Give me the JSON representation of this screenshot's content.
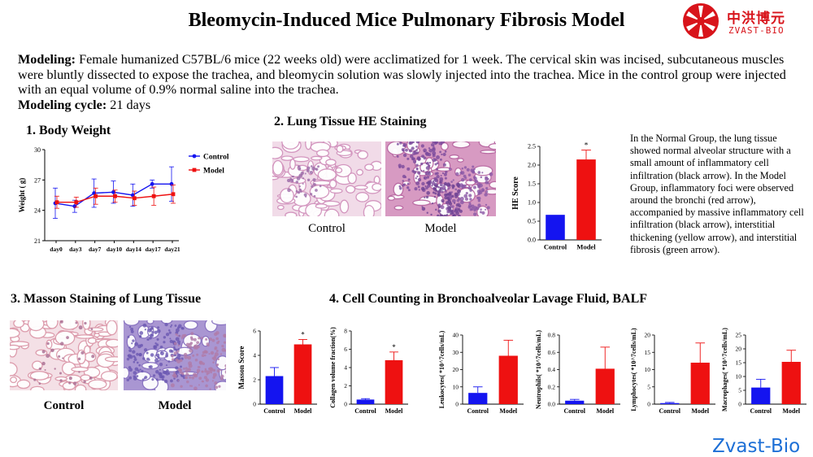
{
  "title": "Bleomycin-Induced Mice Pulmonary Fibrosis Model",
  "brand": {
    "cn": "中洪博元",
    "en": "ZVAST-BIO",
    "footer": "Zvast-Bio",
    "color": "#d8141b",
    "footer_color": "#1d6fd6"
  },
  "intro": {
    "modeling_label": "Modeling:",
    "modeling_text": "Female humanized C57BL/6 mice (22 weeks old) were acclimatized for 1 week. The cervical skin was incised, subcutaneous muscles were bluntly dissected to expose the trachea, and bleomycin solution was slowly injected into the trachea. Mice in the control group were injected with an equal volume of 0.9% normal saline into the trachea.",
    "cycle_label": "Modeling cycle:",
    "cycle_text": "21 days"
  },
  "sections": {
    "s1": "1. Body Weight",
    "s2": "2. Lung Tissue HE Staining",
    "s3": "3. Masson Staining of Lung Tissue",
    "s4": "4. Cell Counting in Bronchoalveolar Lavage Fluid, BALF"
  },
  "captions": {
    "he_control": "Control",
    "he_model": "Model",
    "masson_control": "Control",
    "masson_model": "Model"
  },
  "he_description": "In the Normal Group, the lung tissue showed normal alveolar structure with a small amount of inflammatory cell infiltration (black arrow). In the Model Group, inflammatory foci were observed around the bronchi (red arrow), accompanied by massive inflammatory cell infiltration (black arrow), interstitial thickening (yellow arrow), and interstitial fibrosis (green arrow).",
  "colors": {
    "control": "#1414f0",
    "model": "#ee1111",
    "tissue_light": "#f3dce8",
    "tissue_pink": "#d98db8",
    "tissue_purple": "#8a6cc0"
  },
  "chart_data": [
    {
      "id": "body-weight",
      "type": "line",
      "xlabel": "",
      "ylabel": "Weight ( g)",
      "categories": [
        "day0",
        "day3",
        "day7",
        "day10",
        "day14",
        "day17",
        "day21"
      ],
      "ylim": [
        21,
        30
      ],
      "yticks": [
        21,
        24,
        27,
        30
      ],
      "legend_position": "top-right",
      "series": [
        {
          "name": "Control",
          "color": "#1414f0",
          "values": [
            24.7,
            24.4,
            25.7,
            25.8,
            25.5,
            26.6,
            26.6
          ],
          "errors": [
            1.5,
            0.6,
            1.4,
            1.1,
            1.1,
            0.4,
            1.7
          ]
        },
        {
          "name": "Model",
          "color": "#ee1111",
          "values": [
            24.8,
            24.8,
            25.4,
            25.4,
            25.2,
            25.4,
            25.6
          ],
          "errors": [
            0.6,
            0.5,
            0.8,
            0.6,
            0.7,
            0.9,
            0.9
          ]
        }
      ]
    },
    {
      "id": "he-score",
      "type": "bar",
      "ylabel": "HE Score",
      "categories": [
        "Control",
        "Model"
      ],
      "values": [
        0.67,
        2.15
      ],
      "errors": [
        0,
        0.25
      ],
      "ylim": [
        0,
        2.5
      ],
      "yticks": [
        "0.0",
        "0.5",
        "1.0",
        "1.5",
        "2.0",
        "2.5"
      ],
      "significance": "*"
    },
    {
      "id": "masson-score",
      "type": "bar",
      "ylabel": "Masson Score",
      "categories": [
        "Control",
        "Model"
      ],
      "values": [
        2.3,
        4.9
      ],
      "errors": [
        0.7,
        0.4
      ],
      "ylim": [
        0,
        6
      ],
      "yticks": [
        "0",
        "2",
        "4",
        "6"
      ],
      "significance": "*"
    },
    {
      "id": "collagen-fraction",
      "type": "bar",
      "ylabel": "Collagen volume fraction(%)",
      "categories": [
        "Control",
        "Model"
      ],
      "values": [
        0.5,
        4.8
      ],
      "errors": [
        0.1,
        0.9
      ],
      "ylim": [
        0,
        8
      ],
      "yticks": [
        "0",
        "2",
        "4",
        "6",
        "8"
      ],
      "significance": "*"
    },
    {
      "id": "leukocytes",
      "type": "bar",
      "ylabel": "Leukocytes( *10^7cells/mL)",
      "categories": [
        "Control",
        "Model"
      ],
      "values": [
        6.5,
        28
      ],
      "errors": [
        3.5,
        9
      ],
      "ylim": [
        0,
        40
      ],
      "yticks": [
        "0",
        "10",
        "20",
        "30",
        "40"
      ],
      "significance": ""
    },
    {
      "id": "neutrophils",
      "type": "bar",
      "ylabel": "Neutrophils( *10^7cells/mL)",
      "categories": [
        "Control",
        "Model"
      ],
      "values": [
        0.04,
        0.41
      ],
      "errors": [
        0.015,
        0.25
      ],
      "ylim": [
        0,
        0.8
      ],
      "yticks": [
        "0.0",
        "0.2",
        "0.4",
        "0.6",
        "0.8"
      ],
      "significance": ""
    },
    {
      "id": "lymphocytes",
      "type": "bar",
      "ylabel": "Lymphocytes( *10^7cells/mL)",
      "categories": [
        "Control",
        "Model"
      ],
      "values": [
        0.3,
        12
      ],
      "errors": [
        0.2,
        5.7
      ],
      "ylim": [
        0,
        20
      ],
      "yticks": [
        "0",
        "5",
        "10",
        "15",
        "20"
      ],
      "significance": ""
    },
    {
      "id": "macrophages",
      "type": "bar",
      "ylabel": "Macrophages( *10^7cells/mL)",
      "categories": [
        "Control",
        "Model"
      ],
      "values": [
        6,
        15.3
      ],
      "errors": [
        3,
        4.2
      ],
      "ylim": [
        0,
        25
      ],
      "yticks": [
        "0",
        "5",
        "10",
        "15",
        "20",
        "25"
      ],
      "significance": ""
    }
  ]
}
